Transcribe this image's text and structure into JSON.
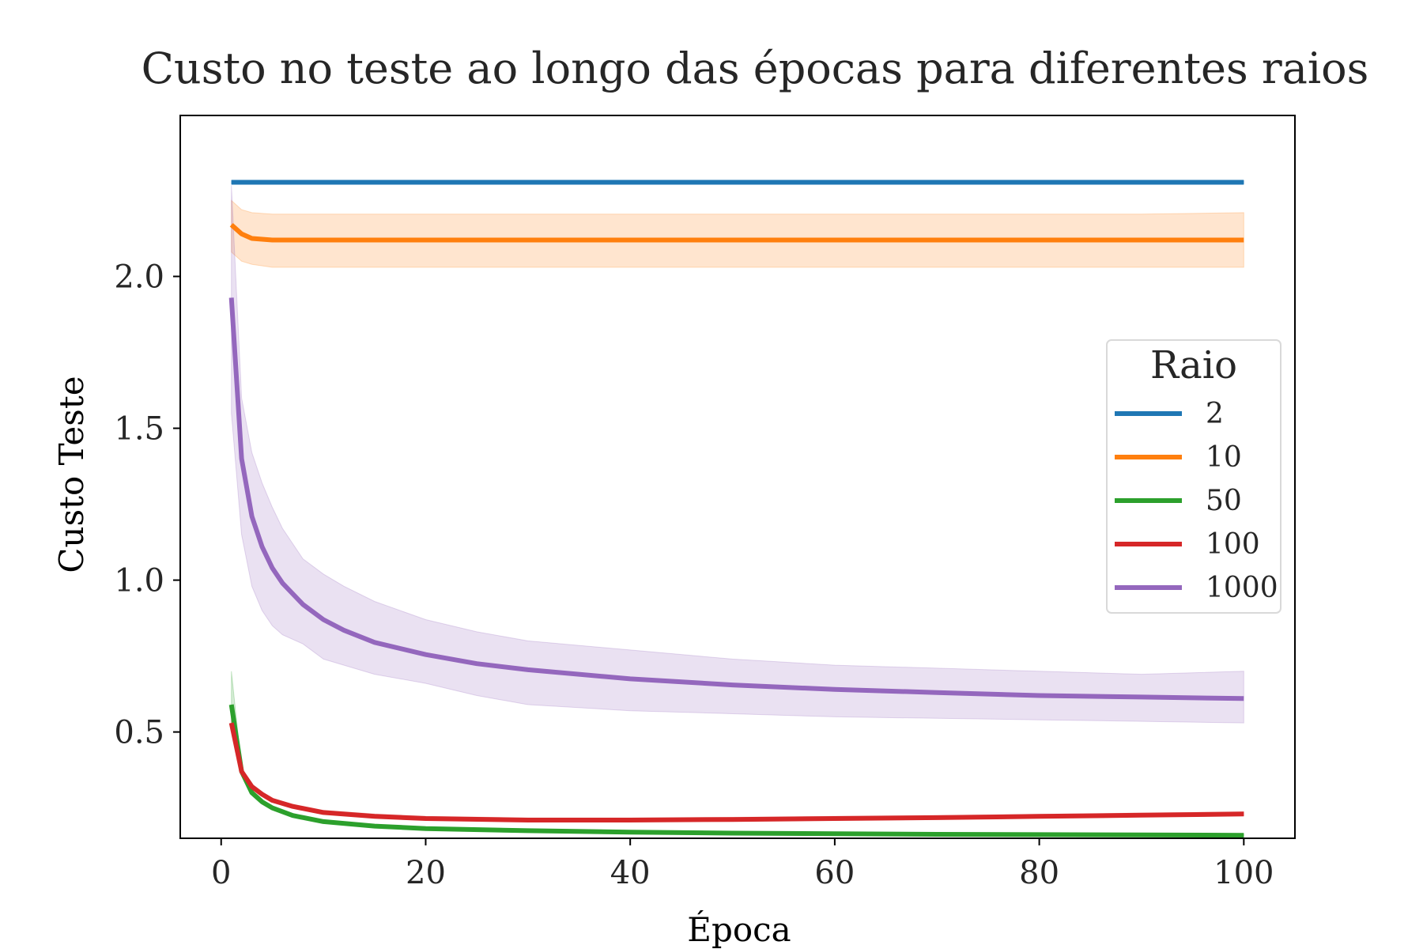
{
  "chart_data": {
    "type": "line",
    "title": "Custo no teste ao longo das épocas para diferentes  raios",
    "xlabel": "Época",
    "ylabel": "Custo Teste",
    "xlim": [
      -4,
      105
    ],
    "ylim": [
      0.15,
      2.53
    ],
    "xticks": [
      0,
      20,
      40,
      60,
      80,
      100
    ],
    "yticks": [
      0.5,
      1.0,
      1.5,
      2.0
    ],
    "xtick_labels": [
      "0",
      "20",
      "40",
      "60",
      "80",
      "100"
    ],
    "ytick_labels": [
      "0.5",
      "1.0",
      "1.5",
      "2.0"
    ],
    "grid": false,
    "legend": {
      "title": "Raio",
      "placement": "center-right"
    },
    "series": [
      {
        "name": "2",
        "color": "#1f77b4",
        "x": [
          1,
          10,
          20,
          30,
          40,
          50,
          60,
          70,
          80,
          90,
          100
        ],
        "values": [
          2.31,
          2.31,
          2.31,
          2.31,
          2.31,
          2.31,
          2.31,
          2.31,
          2.31,
          2.31,
          2.31
        ],
        "lower": [
          2.305,
          2.305,
          2.305,
          2.305,
          2.305,
          2.305,
          2.305,
          2.305,
          2.305,
          2.305,
          2.305
        ],
        "upper": [
          2.315,
          2.315,
          2.315,
          2.315,
          2.315,
          2.315,
          2.315,
          2.315,
          2.315,
          2.315,
          2.315
        ]
      },
      {
        "name": "10",
        "color": "#ff7f0e",
        "x": [
          1,
          2,
          3,
          5,
          10,
          20,
          30,
          40,
          50,
          60,
          70,
          80,
          90,
          100
        ],
        "values": [
          2.17,
          2.14,
          2.125,
          2.12,
          2.12,
          2.12,
          2.12,
          2.12,
          2.12,
          2.12,
          2.12,
          2.12,
          2.12,
          2.12
        ],
        "lower": [
          2.08,
          2.05,
          2.04,
          2.03,
          2.03,
          2.03,
          2.03,
          2.03,
          2.03,
          2.03,
          2.03,
          2.03,
          2.03,
          2.03
        ],
        "upper": [
          2.25,
          2.22,
          2.21,
          2.205,
          2.205,
          2.205,
          2.205,
          2.205,
          2.205,
          2.205,
          2.205,
          2.205,
          2.205,
          2.21
        ]
      },
      {
        "name": "50",
        "color": "#2ca02c",
        "x": [
          1,
          2,
          3,
          4,
          5,
          7,
          10,
          15,
          20,
          30,
          40,
          50,
          60,
          70,
          80,
          90,
          100
        ],
        "values": [
          0.59,
          0.37,
          0.3,
          0.27,
          0.25,
          0.225,
          0.205,
          0.19,
          0.182,
          0.175,
          0.17,
          0.167,
          0.165,
          0.163,
          0.162,
          0.161,
          0.16
        ],
        "lower": [
          0.52,
          0.36,
          0.295,
          0.265,
          0.245,
          0.22,
          0.2,
          0.185,
          0.178,
          0.171,
          0.166,
          0.163,
          0.161,
          0.159,
          0.158,
          0.157,
          0.156
        ],
        "upper": [
          0.7,
          0.38,
          0.305,
          0.275,
          0.255,
          0.23,
          0.21,
          0.195,
          0.186,
          0.179,
          0.174,
          0.171,
          0.169,
          0.167,
          0.166,
          0.165,
          0.164
        ]
      },
      {
        "name": "100",
        "color": "#d62728",
        "x": [
          1,
          2,
          3,
          4,
          5,
          7,
          10,
          15,
          20,
          30,
          40,
          50,
          60,
          70,
          80,
          90,
          100
        ],
        "values": [
          0.53,
          0.37,
          0.32,
          0.295,
          0.275,
          0.255,
          0.235,
          0.222,
          0.215,
          0.21,
          0.21,
          0.212,
          0.215,
          0.218,
          0.222,
          0.226,
          0.23
        ],
        "lower": [
          0.51,
          0.36,
          0.315,
          0.29,
          0.27,
          0.25,
          0.23,
          0.217,
          0.21,
          0.205,
          0.205,
          0.207,
          0.21,
          0.213,
          0.217,
          0.221,
          0.225
        ],
        "upper": [
          0.55,
          0.38,
          0.325,
          0.3,
          0.28,
          0.262,
          0.242,
          0.23,
          0.222,
          0.217,
          0.217,
          0.219,
          0.222,
          0.225,
          0.229,
          0.233,
          0.237
        ]
      },
      {
        "name": "1000",
        "color": "#9467bd",
        "x": [
          1,
          2,
          3,
          4,
          5,
          6,
          8,
          10,
          12,
          15,
          20,
          25,
          30,
          40,
          50,
          60,
          70,
          80,
          90,
          100
        ],
        "values": [
          1.93,
          1.4,
          1.21,
          1.11,
          1.04,
          0.99,
          0.92,
          0.87,
          0.835,
          0.795,
          0.755,
          0.725,
          0.705,
          0.675,
          0.655,
          0.64,
          0.63,
          0.62,
          0.615,
          0.61
        ],
        "lower": [
          1.55,
          1.15,
          0.98,
          0.9,
          0.85,
          0.82,
          0.79,
          0.74,
          0.72,
          0.69,
          0.66,
          0.62,
          0.59,
          0.57,
          0.56,
          0.55,
          0.545,
          0.54,
          0.535,
          0.53
        ],
        "upper": [
          2.3,
          1.6,
          1.42,
          1.32,
          1.24,
          1.17,
          1.07,
          1.02,
          0.98,
          0.93,
          0.87,
          0.83,
          0.8,
          0.77,
          0.74,
          0.72,
          0.71,
          0.7,
          0.69,
          0.7
        ]
      }
    ]
  }
}
